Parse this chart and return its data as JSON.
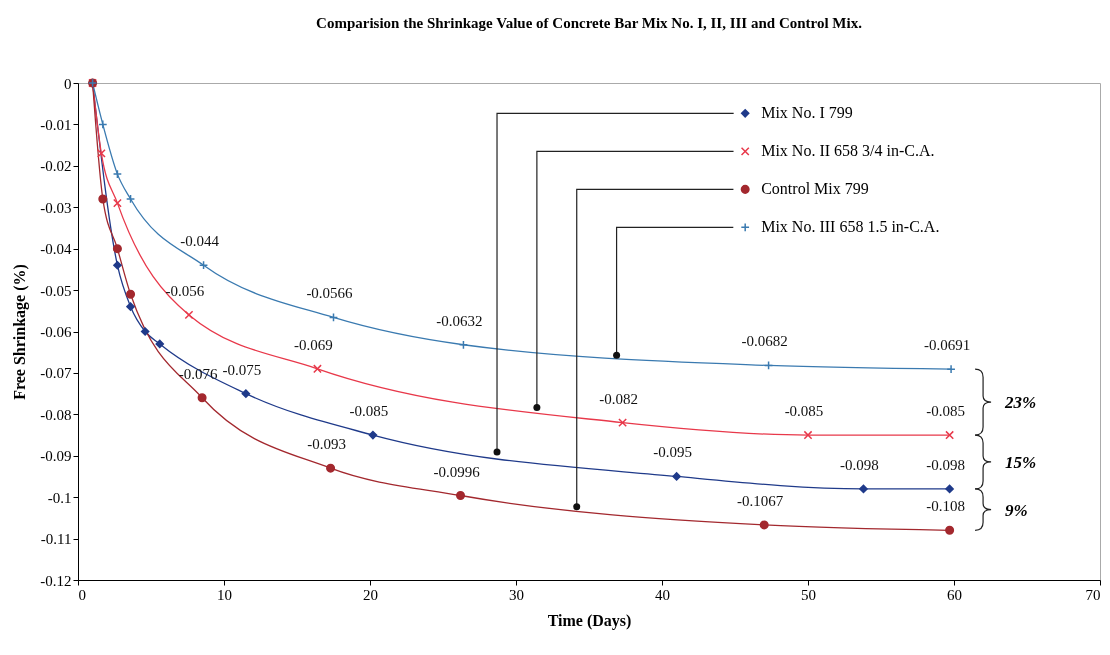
{
  "chart_data": {
    "type": "line",
    "title": "Comparision the Shrinkage Value of Concrete Bar Mix No. I, II, III and Control Mix.",
    "xlabel": "Time (Days)",
    "ylabel": "Free Shrinkage (%)",
    "xlim": [
      0,
      70
    ],
    "xticks": [
      0,
      10,
      20,
      30,
      40,
      50,
      60,
      70
    ],
    "ylim": [
      -0.12,
      0
    ],
    "yticks": [
      -0.12,
      -0.11,
      -0.1,
      -0.09,
      -0.08,
      -0.07,
      -0.06,
      -0.05,
      -0.04,
      -0.03,
      -0.02,
      -0.01,
      0
    ],
    "grid": false,
    "legend": "top right",
    "series": [
      {
        "name": "Mix No. I 799",
        "color": "#1f3a8a",
        "marker": "diamond",
        "x": [
          1,
          2.7,
          3.6,
          4.6,
          5.6,
          11.5,
          20.2,
          41,
          53.8,
          59.7
        ],
        "values": [
          0,
          -0.044,
          -0.054,
          -0.06,
          -0.063,
          -0.075,
          -0.085,
          -0.095,
          -0.098,
          -0.098
        ],
        "value_labels": [
          null,
          null,
          null,
          null,
          null,
          "-0.075",
          "-0.085",
          "-0.095",
          "-0.098",
          "-0.098"
        ]
      },
      {
        "name": "Mix No. II 658 3/4 in-C.A.",
        "color": "#e8384a",
        "marker": "x",
        "x": [
          1,
          1.6,
          2.7,
          7.6,
          16.4,
          37.3,
          50,
          59.7
        ],
        "values": [
          0,
          -0.017,
          -0.029,
          -0.056,
          -0.069,
          -0.082,
          -0.085,
          -0.085
        ],
        "value_labels": [
          null,
          null,
          null,
          "-0.056",
          "-0.069",
          "-0.082",
          "-0.085",
          "-0.085"
        ]
      },
      {
        "name": "Control Mix 799",
        "color": "#a3282e",
        "marker": "circle",
        "x": [
          1,
          1.7,
          2.7,
          3.6,
          8.5,
          17.3,
          26.2,
          47,
          59.7
        ],
        "values": [
          0,
          -0.028,
          -0.04,
          -0.051,
          -0.076,
          -0.093,
          -0.0996,
          -0.1067,
          -0.108
        ],
        "value_labels": [
          null,
          null,
          null,
          null,
          "-0.076",
          "-0.093",
          "-0.0996",
          "-0.1067",
          "-0.108"
        ]
      },
      {
        "name": "Mix No. III 658 1.5 in-C.A.",
        "color": "#3a7ab0",
        "marker": "cross",
        "x": [
          1,
          1.7,
          2.7,
          3.6,
          8.6,
          17.5,
          26.4,
          47.3,
          59.8
        ],
        "values": [
          0,
          -0.01,
          -0.022,
          -0.028,
          -0.044,
          -0.0566,
          -0.0632,
          -0.0682,
          -0.0691
        ],
        "value_labels": [
          null,
          null,
          null,
          null,
          "-0.044",
          "-0.0566",
          "-0.0632",
          "-0.0682",
          "-0.0691"
        ]
      }
    ],
    "annotations": [
      "23%",
      "15%",
      "9%"
    ]
  }
}
